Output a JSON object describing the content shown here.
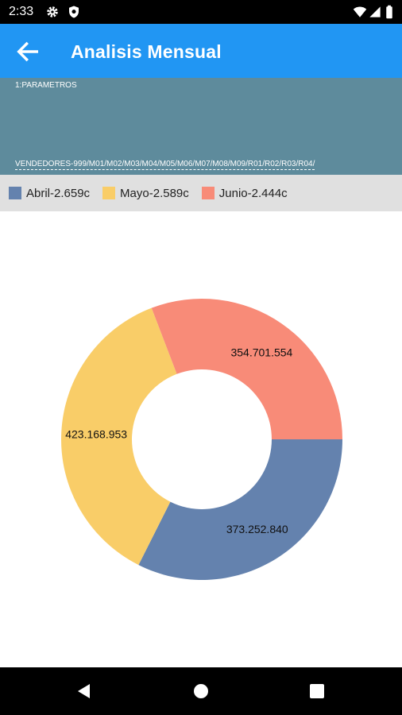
{
  "status": {
    "time": "2:33"
  },
  "header": {
    "title": "Analisis Mensual"
  },
  "params": {
    "label": "1:PARAMETROS",
    "codes": "VENDEDORES-999/M01/M02/M03/M04/M05/M06/M07/M08/M09/R01/R02/R03/R04/"
  },
  "legend": [
    {
      "label": "Abril-2.659c",
      "color": "#6482AE"
    },
    {
      "label": "Mayo-2.589c",
      "color": "#F9CD68"
    },
    {
      "label": "Junio-2.444c",
      "color": "#F88B78"
    }
  ],
  "chart_data": {
    "type": "pie",
    "categories": [
      "Abril",
      "Mayo",
      "Junio"
    ],
    "values": [
      373252840,
      423168953,
      354701554
    ],
    "value_labels": [
      "373.252.840",
      "423.168.953",
      "354.701.554"
    ],
    "colors": [
      "#6482AE",
      "#F9CD68",
      "#F88B78"
    ],
    "title": "",
    "donut": true
  },
  "icons": {
    "status": [
      "settings-icon",
      "shield-icon",
      "wifi-icon",
      "signal-icon",
      "battery-icon"
    ],
    "nav": [
      "back-triangle-icon",
      "home-circle-icon",
      "recents-square-icon"
    ]
  }
}
